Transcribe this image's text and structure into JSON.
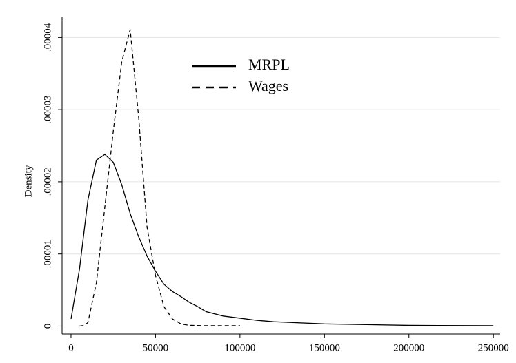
{
  "chart_data": {
    "type": "line",
    "y_label": "Density",
    "xlim": [
      -5300,
      254000
    ],
    "ylim": [
      -1.1e-06,
      4.28e-05
    ],
    "xticks": [
      0,
      50000,
      100000,
      150000,
      200000,
      250000
    ],
    "yticks": [
      0,
      {
        "value": 1e-05,
        "label": ".00001"
      },
      {
        "value": 2e-05,
        "label": ".00002"
      },
      {
        "value": 3e-05,
        "label": ".00003"
      },
      {
        "value": 4e-05,
        "label": ".00004"
      }
    ],
    "grid": true,
    "legend_position": "upper-center",
    "series": [
      {
        "name": "MRPL",
        "color": "#000000",
        "line_style": "solid",
        "x": [
          0,
          5000,
          10000,
          15000,
          20000,
          25000,
          30000,
          35000,
          40000,
          45000,
          50000,
          55000,
          60000,
          65000,
          70000,
          75000,
          80000,
          90000,
          100000,
          110000,
          120000,
          130000,
          150000,
          175000,
          200000,
          250000
        ],
        "values": [
          1e-06,
          7.9e-06,
          1.75e-05,
          2.3e-05,
          2.38e-05,
          2.27e-05,
          1.96e-05,
          1.56e-05,
          1.24e-05,
          9.7e-06,
          7.6e-06,
          5.8e-06,
          4.8e-06,
          4.1e-06,
          3.3e-06,
          2.7e-06,
          2e-06,
          1.4e-06,
          1.1e-06,
          8e-07,
          6e-07,
          5e-07,
          3e-07,
          2e-07,
          1e-07,
          5e-08
        ]
      },
      {
        "name": "Wages",
        "color": "#000000",
        "line_style": "dashed",
        "x": [
          5000,
          8000,
          10000,
          15000,
          20000,
          25000,
          30000,
          35000,
          40000,
          45000,
          50000,
          55000,
          60000,
          65000,
          70000,
          80000,
          90000,
          100000
        ],
        "values": [
          0,
          1e-07,
          5e-07,
          6e-06,
          1.65e-05,
          2.7e-05,
          3.66e-05,
          4.11e-05,
          2.9e-05,
          1.37e-05,
          7e-06,
          2.7e-06,
          1e-06,
          3e-07,
          1e-07,
          5e-08,
          5e-08,
          5e-08
        ]
      }
    ]
  }
}
